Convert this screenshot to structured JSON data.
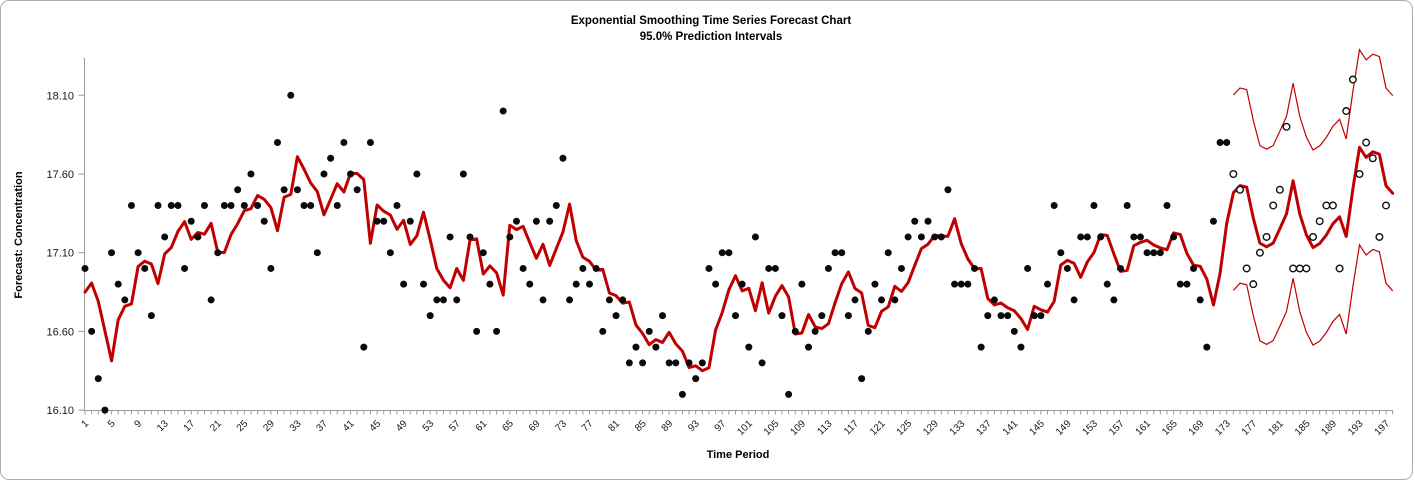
{
  "chart_data": {
    "type": "line",
    "title": "Exponential Smoothing Time Series Forecast Chart",
    "subtitle": "95.0% Prediction Intervals",
    "xlabel": "Time Period",
    "ylabel": "Forecast: Concentration",
    "x_range": [
      1,
      197
    ],
    "ylim": [
      16.1,
      18.1
    ],
    "grid": "off",
    "legend": "none",
    "y_ticks": [
      {
        "label": "18.10",
        "value": 18.1
      },
      {
        "label": "17.60",
        "value": 17.6
      },
      {
        "label": "17.10",
        "value": 17.1
      },
      {
        "label": "16.60",
        "value": 16.6
      },
      {
        "label": "16.10",
        "value": 16.1
      }
    ],
    "x_tick_labels": [
      "1",
      "5",
      "9",
      "13",
      "17",
      "21",
      "25",
      "29",
      "33",
      "37",
      "41",
      "45",
      "49",
      "53",
      "57",
      "61",
      "65",
      "69",
      "73",
      "77",
      "81",
      "85",
      "89",
      "93",
      "97",
      "101",
      "105",
      "109",
      "113",
      "117",
      "121",
      "125",
      "129",
      "133",
      "137",
      "141",
      "145",
      "149",
      "153",
      "157",
      "161",
      "165",
      "169",
      "173",
      "177",
      "181",
      "185",
      "189",
      "193",
      "197"
    ],
    "x_tick_label_step": 4,
    "series": [
      {
        "name": "observed-actuals",
        "marker": "filled-black-circle",
        "x_start": 1,
        "values": [
          17.0,
          16.6,
          16.3,
          16.1,
          17.1,
          16.9,
          16.8,
          17.4,
          17.1,
          17.0,
          16.7,
          17.4,
          17.2,
          17.4,
          17.4,
          17.0,
          17.3,
          17.2,
          17.4,
          16.8,
          17.1,
          17.4,
          17.4,
          17.5,
          17.4,
          17.6,
          17.4,
          17.3,
          17.0,
          17.8,
          17.5,
          18.1,
          17.5,
          17.4,
          17.4,
          17.1,
          17.6,
          17.7,
          17.4,
          17.8,
          17.6,
          17.5,
          16.5,
          17.8,
          17.3,
          17.3,
          17.1,
          17.4,
          16.9,
          17.3,
          17.6,
          16.9,
          16.7,
          16.8,
          16.8,
          17.2,
          16.8,
          17.6,
          17.2,
          16.6,
          17.1,
          16.9,
          16.6,
          18.0,
          17.2,
          17.3,
          17.0,
          16.9,
          17.3,
          16.8,
          17.3,
          17.4,
          17.7,
          16.8,
          16.9,
          17.0,
          16.9,
          17.0,
          16.6,
          16.8,
          16.7,
          16.8,
          16.4,
          16.5,
          16.4,
          16.6,
          16.5,
          16.7,
          16.4,
          16.4,
          16.2,
          16.4,
          16.3,
          16.4,
          17.0,
          16.9,
          17.1,
          17.1,
          16.7,
          16.9,
          16.5,
          17.2,
          16.4,
          17.0,
          17.0,
          16.7,
          16.2,
          16.6,
          16.9,
          16.5,
          16.6,
          16.7,
          17.0,
          17.1,
          17.1,
          16.7,
          16.8,
          16.3,
          16.6,
          16.9,
          16.8,
          17.1,
          16.8,
          17.0,
          17.2,
          17.3,
          17.2,
          17.3,
          17.2,
          17.2,
          17.5,
          16.9,
          16.9,
          16.9,
          17.0,
          16.5,
          16.7,
          16.8,
          16.7,
          16.7,
          16.6,
          16.5,
          17.0,
          16.7,
          16.7,
          16.9,
          17.4,
          17.1,
          17.0,
          16.8,
          17.2,
          17.2,
          17.4,
          17.2,
          16.9,
          16.8,
          17.0,
          17.4,
          17.2,
          17.2,
          17.1,
          17.1,
          17.1,
          17.4,
          17.2,
          16.9,
          16.9,
          17.0,
          16.8,
          16.5,
          17.3,
          17.8,
          17.8
        ]
      },
      {
        "name": "validation-actuals",
        "marker": "open-circle",
        "x_start": 174,
        "values": [
          17.6,
          17.5,
          17.0,
          16.9,
          17.1,
          17.2,
          17.4,
          17.5,
          17.9,
          17.0,
          17.0,
          17.0,
          17.2,
          17.3,
          17.4,
          17.4,
          17.0,
          18.0,
          18.2,
          17.6,
          17.8,
          17.7,
          17.2,
          17.4
        ]
      }
    ],
    "forecast_line": {
      "name": "one-step-ahead-forecast",
      "method": "exponential_smoothing",
      "alpha_estimated": 0.38,
      "initial_level_estimated": 16.85,
      "color": "#c00000",
      "interval": {
        "coverage_label": "95.0%",
        "start_x": 174,
        "halfwidth_estimated": 0.62
      }
    },
    "colors": {
      "forecast_red": "#c00000",
      "point_black": "#0a0a0a",
      "axis_gray": "#9a9a9a",
      "text_black": "#000000"
    }
  }
}
